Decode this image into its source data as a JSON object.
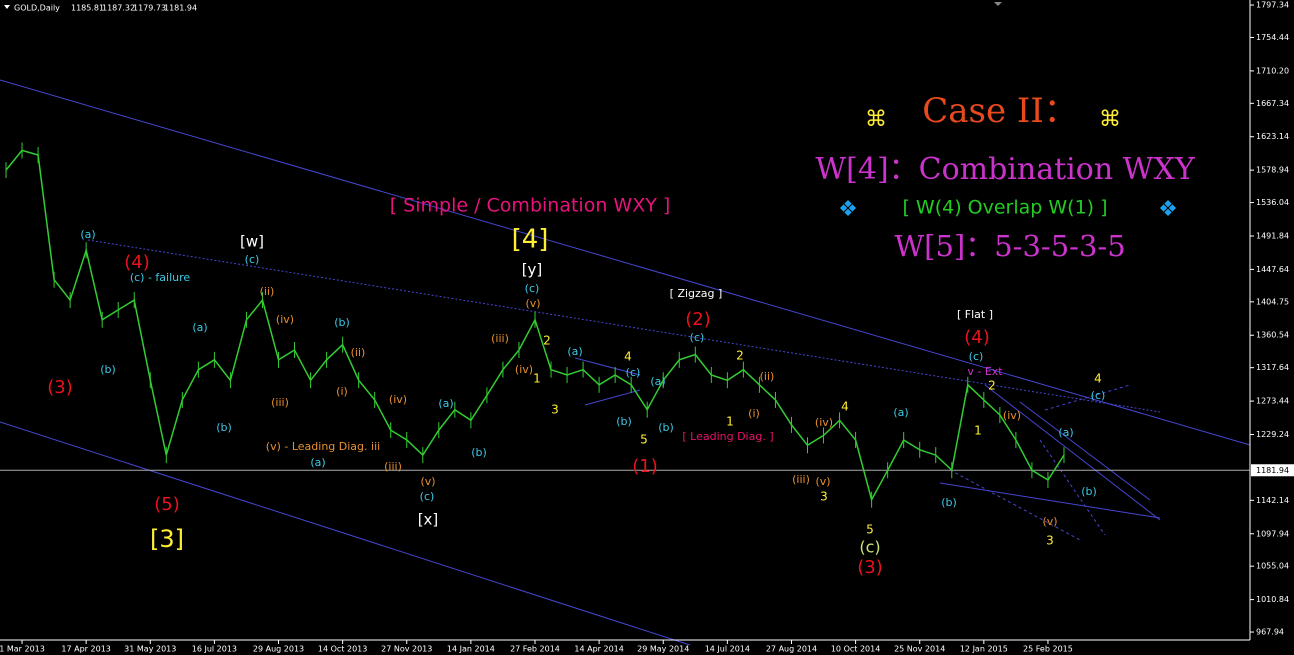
{
  "chart_data": {
    "type": "line",
    "symbol": "GOLD,Daily",
    "ohlc": [
      1185.81,
      1187.32,
      1179.73,
      1181.94
    ],
    "title": "[ Simple / Combination WXY ]",
    "case": {
      "mark_left": "⌘",
      "heading": "Case II：",
      "mark_right": "⌘",
      "w4": "W[4]：Combination WXY",
      "overlap": "[ W(4) Overlap W(1) ]",
      "w5": "W[5]：5-3-5-3-5"
    },
    "categories": [
      null,
      "1 Mar 2013",
      null,
      null,
      null,
      "17 Apr 2013",
      null,
      null,
      null,
      "31 May 2013",
      null,
      null,
      null,
      "16 Jul 2013",
      null,
      null,
      null,
      "29 Aug 2013",
      null,
      null,
      null,
      "14 Oct 2013",
      null,
      null,
      null,
      "27 Nov 2013",
      null,
      null,
      null,
      "14 Jan 2014",
      null,
      null,
      null,
      "27 Feb 2014",
      null,
      null,
      null,
      "14 Apr 2014",
      null,
      null,
      null,
      "29 May 2014",
      null,
      null,
      null,
      "14 Jul 2014",
      null,
      null,
      null,
      "27 Aug 2014",
      null,
      null,
      null,
      "10 Oct 2014",
      null,
      null,
      null,
      "25 Nov 2014",
      null,
      null,
      null,
      "12 Jan 2015",
      null,
      null,
      null,
      "25 Feb 2015",
      null
    ],
    "values": [
      1579,
      1605,
      1599,
      1434,
      1407,
      1473,
      1381,
      1394,
      1407,
      1301,
      1202,
      1275,
      1315,
      1328,
      1301,
      1381,
      1407,
      1328,
      1341,
      1301,
      1328,
      1348,
      1301,
      1275,
      1235,
      1222,
      1202,
      1235,
      1262,
      1248,
      1281,
      1315,
      1341,
      1381,
      1315,
      1308,
      1315,
      1295,
      1308,
      1295,
      1262,
      1301,
      1328,
      1335,
      1308,
      1301,
      1315,
      1295,
      1275,
      1242,
      1215,
      1228,
      1248,
      1222,
      1143,
      1182,
      1222,
      1209,
      1202,
      1182,
      1295,
      1275,
      1255,
      1222,
      1182,
      1169,
      1202
    ],
    "color": "#33cc33",
    "last_price": 1181.94,
    "ylim": [
      957.4,
      1804
    ],
    "yticks": [
      967.94,
      1010.84,
      1055.04,
      1097.94,
      1142.14,
      1229.24,
      1273.44,
      1317.64,
      1360.54,
      1404.75,
      1447.64,
      1491.84,
      1536.04,
      1578.94,
      1623.14,
      1667.34,
      {
        "value": 1710.2,
        "label": "1710.20"
      },
      1754.44,
      1797.34
    ],
    "annotations": [
      "(3)",
      "(4)",
      "(5)",
      "[3]",
      "(a)",
      "(b)",
      "(c) - failure",
      "[w]",
      "(c)",
      "(ii)",
      "(iv)",
      "(iii)",
      "(v) - Leading Diag. iii",
      "(a)",
      "(b)",
      "(ii)",
      "(i)",
      "(iv)",
      "(iii)",
      "(v)",
      "(c)",
      "[x]",
      "(a)",
      "(b)",
      "(a)",
      "(b)",
      "[4]",
      "[y]",
      "(c)",
      "(v)",
      "(iii)",
      "(iv)",
      "2",
      "1",
      "3",
      "(a)",
      "(c)",
      "(b)",
      "4",
      "5",
      "(1)",
      "(a)",
      "(b)",
      "[ Zigzag ]",
      "(2)",
      "(c)",
      "2",
      "1",
      "[ Leading Diag. ]",
      "(ii)",
      "(i)",
      "(iv)",
      "(iii)",
      "(v)",
      "4",
      "3",
      "5",
      "(c)",
      "(3)",
      "(a)",
      "(b)",
      "[ Flat ]",
      "(4)",
      "(c)",
      "v - Ext",
      "2",
      "1",
      "(iv)",
      "(v)",
      "3",
      "(a)",
      "(b)",
      "4",
      "(c)"
    ]
  }
}
